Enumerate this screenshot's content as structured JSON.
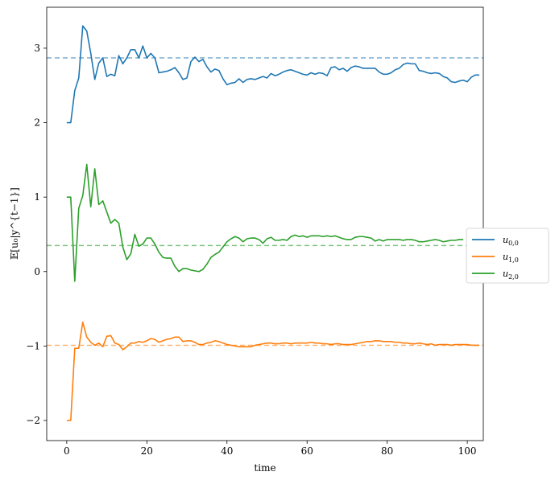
{
  "chart_data": {
    "type": "line",
    "xlabel": "time",
    "ylabel": "𝔼[u₀|y^{t−1}]",
    "xlim": [
      -5,
      104
    ],
    "ylim": [
      -2.27,
      3.55
    ],
    "xticks": [
      0,
      20,
      40,
      60,
      80,
      100
    ],
    "yticks": [
      -2,
      -1,
      0,
      1,
      2,
      3
    ],
    "grid": false,
    "legend_position": "center-right-outside",
    "reference_lines": [
      {
        "y": 2.87,
        "color": "#1f77b4",
        "style": "dashed"
      },
      {
        "y": 0.35,
        "color": "#2ca02c",
        "style": "dashed"
      },
      {
        "y": -0.99,
        "color": "#ff7f0e",
        "style": "dashed"
      }
    ],
    "series": [
      {
        "name": "u0,0",
        "name_main": "u",
        "name_sub": "0,0",
        "color": "#1f77b4",
        "x_start": 0,
        "values": [
          2.0,
          2.0,
          2.43,
          2.6,
          3.3,
          3.23,
          2.93,
          2.58,
          2.8,
          2.87,
          2.62,
          2.65,
          2.63,
          2.9,
          2.79,
          2.87,
          2.98,
          2.98,
          2.87,
          3.03,
          2.87,
          2.93,
          2.87,
          2.67,
          2.68,
          2.69,
          2.71,
          2.74,
          2.67,
          2.58,
          2.6,
          2.82,
          2.88,
          2.82,
          2.85,
          2.75,
          2.68,
          2.72,
          2.7,
          2.59,
          2.51,
          2.53,
          2.54,
          2.59,
          2.54,
          2.58,
          2.59,
          2.58,
          2.6,
          2.62,
          2.6,
          2.66,
          2.63,
          2.65,
          2.68,
          2.7,
          2.71,
          2.69,
          2.67,
          2.65,
          2.64,
          2.67,
          2.65,
          2.67,
          2.66,
          2.63,
          2.74,
          2.75,
          2.71,
          2.73,
          2.69,
          2.74,
          2.76,
          2.75,
          2.73,
          2.73,
          2.73,
          2.73,
          2.68,
          2.65,
          2.65,
          2.67,
          2.71,
          2.73,
          2.78,
          2.8,
          2.79,
          2.79,
          2.7,
          2.69,
          2.67,
          2.66,
          2.67,
          2.66,
          2.62,
          2.6,
          2.55,
          2.54,
          2.56,
          2.57,
          2.55,
          2.61,
          2.64,
          2.64
        ]
      },
      {
        "name": "u1,0",
        "name_main": "u",
        "name_sub": "1,0",
        "color": "#ff7f0e",
        "x_start": 0,
        "values": [
          -2.0,
          -2.0,
          -1.03,
          -1.03,
          -0.68,
          -0.88,
          -0.95,
          -0.99,
          -0.96,
          -1.01,
          -0.87,
          -0.86,
          -0.96,
          -0.98,
          -1.05,
          -1.01,
          -0.96,
          -0.96,
          -0.94,
          -0.95,
          -0.93,
          -0.9,
          -0.91,
          -0.95,
          -0.93,
          -0.91,
          -0.9,
          -0.88,
          -0.88,
          -0.94,
          -0.93,
          -0.93,
          -0.95,
          -0.98,
          -0.98,
          -0.96,
          -0.95,
          -0.93,
          -0.94,
          -0.96,
          -0.98,
          -0.99,
          -1.0,
          -1.01,
          -1.01,
          -1.01,
          -1.01,
          -0.99,
          -0.98,
          -0.97,
          -0.96,
          -0.96,
          -0.97,
          -0.97,
          -0.96,
          -0.96,
          -0.97,
          -0.96,
          -0.96,
          -0.96,
          -0.96,
          -0.95,
          -0.96,
          -0.96,
          -0.97,
          -0.97,
          -0.98,
          -0.97,
          -0.97,
          -0.98,
          -0.98,
          -0.98,
          -0.97,
          -0.96,
          -0.95,
          -0.94,
          -0.94,
          -0.93,
          -0.93,
          -0.94,
          -0.94,
          -0.94,
          -0.95,
          -0.95,
          -0.96,
          -0.96,
          -0.97,
          -0.97,
          -0.96,
          -0.97,
          -0.98,
          -0.97,
          -0.99,
          -0.98,
          -0.98,
          -0.98,
          -0.99,
          -0.98,
          -0.98,
          -0.98,
          -0.98,
          -0.99,
          -0.99,
          -0.99
        ]
      },
      {
        "name": "u2,0",
        "name_main": "u",
        "name_sub": "2,0",
        "color": "#2ca02c",
        "x_start": 0,
        "values": [
          1.0,
          1.0,
          -0.13,
          0.85,
          1.02,
          1.44,
          0.87,
          1.38,
          0.9,
          0.95,
          0.8,
          0.65,
          0.7,
          0.65,
          0.33,
          0.16,
          0.24,
          0.5,
          0.34,
          0.37,
          0.45,
          0.45,
          0.37,
          0.26,
          0.19,
          0.18,
          0.18,
          0.07,
          0.0,
          0.04,
          0.04,
          0.02,
          0.01,
          0.0,
          0.03,
          0.1,
          0.19,
          0.23,
          0.26,
          0.33,
          0.4,
          0.44,
          0.47,
          0.45,
          0.4,
          0.44,
          0.45,
          0.45,
          0.43,
          0.38,
          0.44,
          0.46,
          0.42,
          0.42,
          0.43,
          0.42,
          0.47,
          0.49,
          0.47,
          0.48,
          0.46,
          0.48,
          0.48,
          0.48,
          0.47,
          0.48,
          0.47,
          0.48,
          0.46,
          0.44,
          0.43,
          0.43,
          0.46,
          0.47,
          0.47,
          0.46,
          0.45,
          0.41,
          0.43,
          0.41,
          0.43,
          0.43,
          0.43,
          0.43,
          0.42,
          0.43,
          0.43,
          0.42,
          0.4,
          0.4,
          0.41,
          0.42,
          0.43,
          0.42,
          0.4,
          0.41,
          0.42,
          0.42,
          0.43,
          0.43
        ]
      }
    ]
  }
}
